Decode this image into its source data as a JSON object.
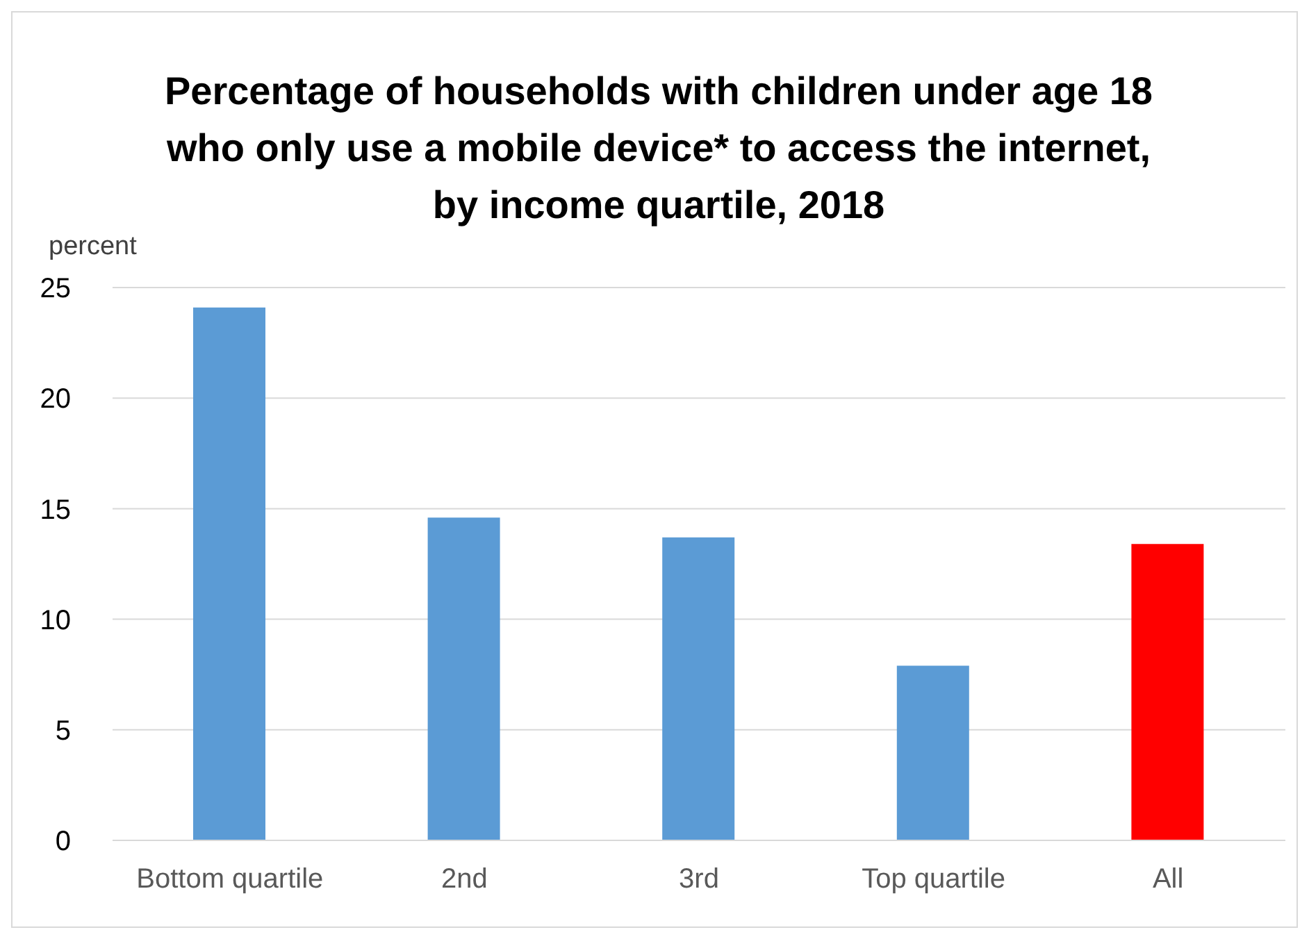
{
  "chart_data": {
    "type": "bar",
    "title": "Percentage of households with children under age 18 who only use a mobile device* to access the internet,  by income quartile, 2018",
    "ylabel": "percent",
    "categories": [
      "Bottom quartile",
      "2nd",
      "3rd",
      "Top quartile",
      "All"
    ],
    "values": [
      24.1,
      14.6,
      13.7,
      7.9,
      13.4
    ],
    "colors": [
      "#5b9bd5",
      "#5b9bd5",
      "#5b9bd5",
      "#5b9bd5",
      "#ff0000"
    ],
    "ylim": [
      0,
      25
    ],
    "yticks": [
      0,
      5,
      10,
      15,
      20,
      25
    ],
    "grid": "y"
  }
}
